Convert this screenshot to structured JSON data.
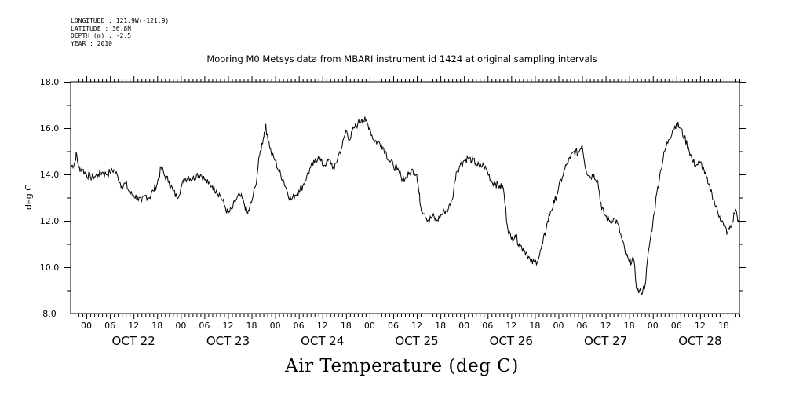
{
  "header": {
    "longitude": "LONGITUDE : 121.9W(-121.9)",
    "latitude": "LATITUDE : 36.8N",
    "depth": "DEPTH (m) : -2.5",
    "year": "YEAR : 2010"
  },
  "chart_data": {
    "type": "line",
    "title": "Mooring M0 Metsys data from MBARI instrument id 1424 at original sampling intervals",
    "xlabel": "Air Temperature (deg C)",
    "ylabel": "deg C",
    "ylim": [
      8.0,
      18.0
    ],
    "yticks": [
      "8.0",
      "10.0",
      "12.0",
      "14.0",
      "16.0",
      "18.0"
    ],
    "xlim_hours": [
      -4,
      166
    ],
    "x_hour_ticks": [
      "00",
      "06",
      "12",
      "18"
    ],
    "day_labels": [
      "OCT 22",
      "OCT 23",
      "OCT 24",
      "OCT 25",
      "OCT 26",
      "OCT 27",
      "OCT 28"
    ],
    "grid": false,
    "line_color": "#000000",
    "series": [
      {
        "points": [
          [
            -4,
            14.3
          ],
          [
            -3,
            14.5
          ],
          [
            -2.5,
            14.9
          ],
          [
            -2,
            14.3
          ],
          [
            -1,
            14.2
          ],
          [
            0,
            14.0
          ],
          [
            1,
            13.9
          ],
          [
            2,
            13.9
          ],
          [
            3,
            14.0
          ],
          [
            4,
            14.1
          ],
          [
            5,
            14.0
          ],
          [
            6,
            14.1
          ],
          [
            7,
            14.2
          ],
          [
            8,
            13.9
          ],
          [
            9,
            13.5
          ],
          [
            10,
            13.6
          ],
          [
            11,
            13.2
          ],
          [
            12,
            13.1
          ],
          [
            13,
            13.0
          ],
          [
            14,
            12.8
          ],
          [
            15,
            13.1
          ],
          [
            16,
            13.0
          ],
          [
            17,
            13.3
          ],
          [
            18,
            13.6
          ],
          [
            19,
            14.3
          ],
          [
            20,
            13.9
          ],
          [
            21,
            13.7
          ],
          [
            22,
            13.3
          ],
          [
            23,
            13.0
          ],
          [
            24,
            13.4
          ],
          [
            25,
            13.8
          ],
          [
            26,
            13.9
          ],
          [
            27,
            13.8
          ],
          [
            28,
            14.0
          ],
          [
            29,
            14.0
          ],
          [
            30,
            13.8
          ],
          [
            31,
            13.6
          ],
          [
            32,
            13.5
          ],
          [
            33,
            13.3
          ],
          [
            34,
            13.1
          ],
          [
            35,
            12.7
          ],
          [
            36,
            12.3
          ],
          [
            37,
            12.5
          ],
          [
            38,
            12.9
          ],
          [
            39,
            13.1
          ],
          [
            40,
            12.8
          ],
          [
            41,
            12.3
          ],
          [
            42,
            12.8
          ],
          [
            43,
            13.5
          ],
          [
            44,
            14.8
          ],
          [
            45,
            15.6
          ],
          [
            45.5,
            16.1
          ],
          [
            46,
            15.7
          ],
          [
            47,
            14.9
          ],
          [
            48,
            14.6
          ],
          [
            49,
            14.1
          ],
          [
            50,
            13.8
          ],
          [
            51,
            13.3
          ],
          [
            52,
            12.9
          ],
          [
            53,
            13.1
          ],
          [
            54,
            13.3
          ],
          [
            55,
            13.5
          ],
          [
            56,
            13.9
          ],
          [
            57,
            14.3
          ],
          [
            58,
            14.5
          ],
          [
            59,
            14.8
          ],
          [
            60,
            14.4
          ],
          [
            61,
            14.5
          ],
          [
            62,
            14.6
          ],
          [
            63,
            14.2
          ],
          [
            64,
            14.8
          ],
          [
            65,
            15.2
          ],
          [
            66,
            15.9
          ],
          [
            67,
            15.5
          ],
          [
            68,
            16.0
          ],
          [
            69,
            16.2
          ],
          [
            70,
            16.4
          ],
          [
            71,
            16.3
          ],
          [
            72,
            16.0
          ],
          [
            73,
            15.5
          ],
          [
            74,
            15.4
          ],
          [
            75,
            15.3
          ],
          [
            76,
            15.0
          ],
          [
            77,
            14.6
          ],
          [
            78,
            14.4
          ],
          [
            79,
            14.2
          ],
          [
            80,
            13.9
          ],
          [
            81,
            13.8
          ],
          [
            82,
            14.0
          ],
          [
            83,
            14.2
          ],
          [
            84,
            14.0
          ],
          [
            84.5,
            13.3
          ],
          [
            85,
            12.6
          ],
          [
            86,
            12.3
          ],
          [
            87,
            12.0
          ],
          [
            88,
            12.2
          ],
          [
            89,
            12.0
          ],
          [
            90,
            12.2
          ],
          [
            91,
            12.4
          ],
          [
            92,
            12.5
          ],
          [
            93,
            12.9
          ],
          [
            94,
            14.1
          ],
          [
            95,
            14.4
          ],
          [
            96,
            14.6
          ],
          [
            97,
            14.7
          ],
          [
            98,
            14.6
          ],
          [
            99,
            14.5
          ],
          [
            100,
            14.3
          ],
          [
            101,
            14.4
          ],
          [
            102,
            14.1
          ],
          [
            103,
            13.7
          ],
          [
            104,
            13.6
          ],
          [
            105,
            13.5
          ],
          [
            106,
            13.4
          ],
          [
            107,
            11.8
          ],
          [
            108,
            11.2
          ],
          [
            109,
            11.4
          ],
          [
            110,
            11.0
          ],
          [
            111,
            10.8
          ],
          [
            112,
            10.6
          ],
          [
            113,
            10.2
          ],
          [
            114,
            10.2
          ],
          [
            115,
            10.4
          ],
          [
            116,
            11.0
          ],
          [
            117,
            11.8
          ],
          [
            118,
            12.4
          ],
          [
            119,
            12.8
          ],
          [
            120,
            13.4
          ],
          [
            121,
            13.9
          ],
          [
            122,
            14.4
          ],
          [
            123,
            14.7
          ],
          [
            124,
            15.0
          ],
          [
            125,
            14.9
          ],
          [
            126,
            15.3
          ],
          [
            127,
            14.2
          ],
          [
            128,
            13.9
          ],
          [
            129,
            14.0
          ],
          [
            130,
            13.7
          ],
          [
            131,
            12.5
          ],
          [
            132,
            12.2
          ],
          [
            133,
            12.0
          ],
          [
            134,
            12.1
          ],
          [
            135,
            11.9
          ],
          [
            136,
            11.3
          ],
          [
            137,
            10.6
          ],
          [
            138,
            10.2
          ],
          [
            139,
            10.4
          ],
          [
            140,
            9.0
          ],
          [
            141,
            8.9
          ],
          [
            142,
            9.2
          ],
          [
            143,
            10.8
          ],
          [
            144,
            11.9
          ],
          [
            145,
            13.2
          ],
          [
            146,
            14.2
          ],
          [
            147,
            15.0
          ],
          [
            148,
            15.5
          ],
          [
            149,
            15.9
          ],
          [
            150,
            16.2
          ],
          [
            151,
            16.0
          ],
          [
            152,
            15.6
          ],
          [
            153,
            15.2
          ],
          [
            154,
            14.6
          ],
          [
            155,
            14.4
          ],
          [
            156,
            14.5
          ],
          [
            157,
            14.2
          ],
          [
            158,
            13.6
          ],
          [
            159,
            13.2
          ],
          [
            160,
            12.6
          ],
          [
            161,
            12.2
          ],
          [
            162,
            11.8
          ],
          [
            163,
            11.5
          ],
          [
            164,
            11.8
          ],
          [
            165,
            12.5
          ],
          [
            166,
            11.8
          ]
        ]
      }
    ]
  }
}
